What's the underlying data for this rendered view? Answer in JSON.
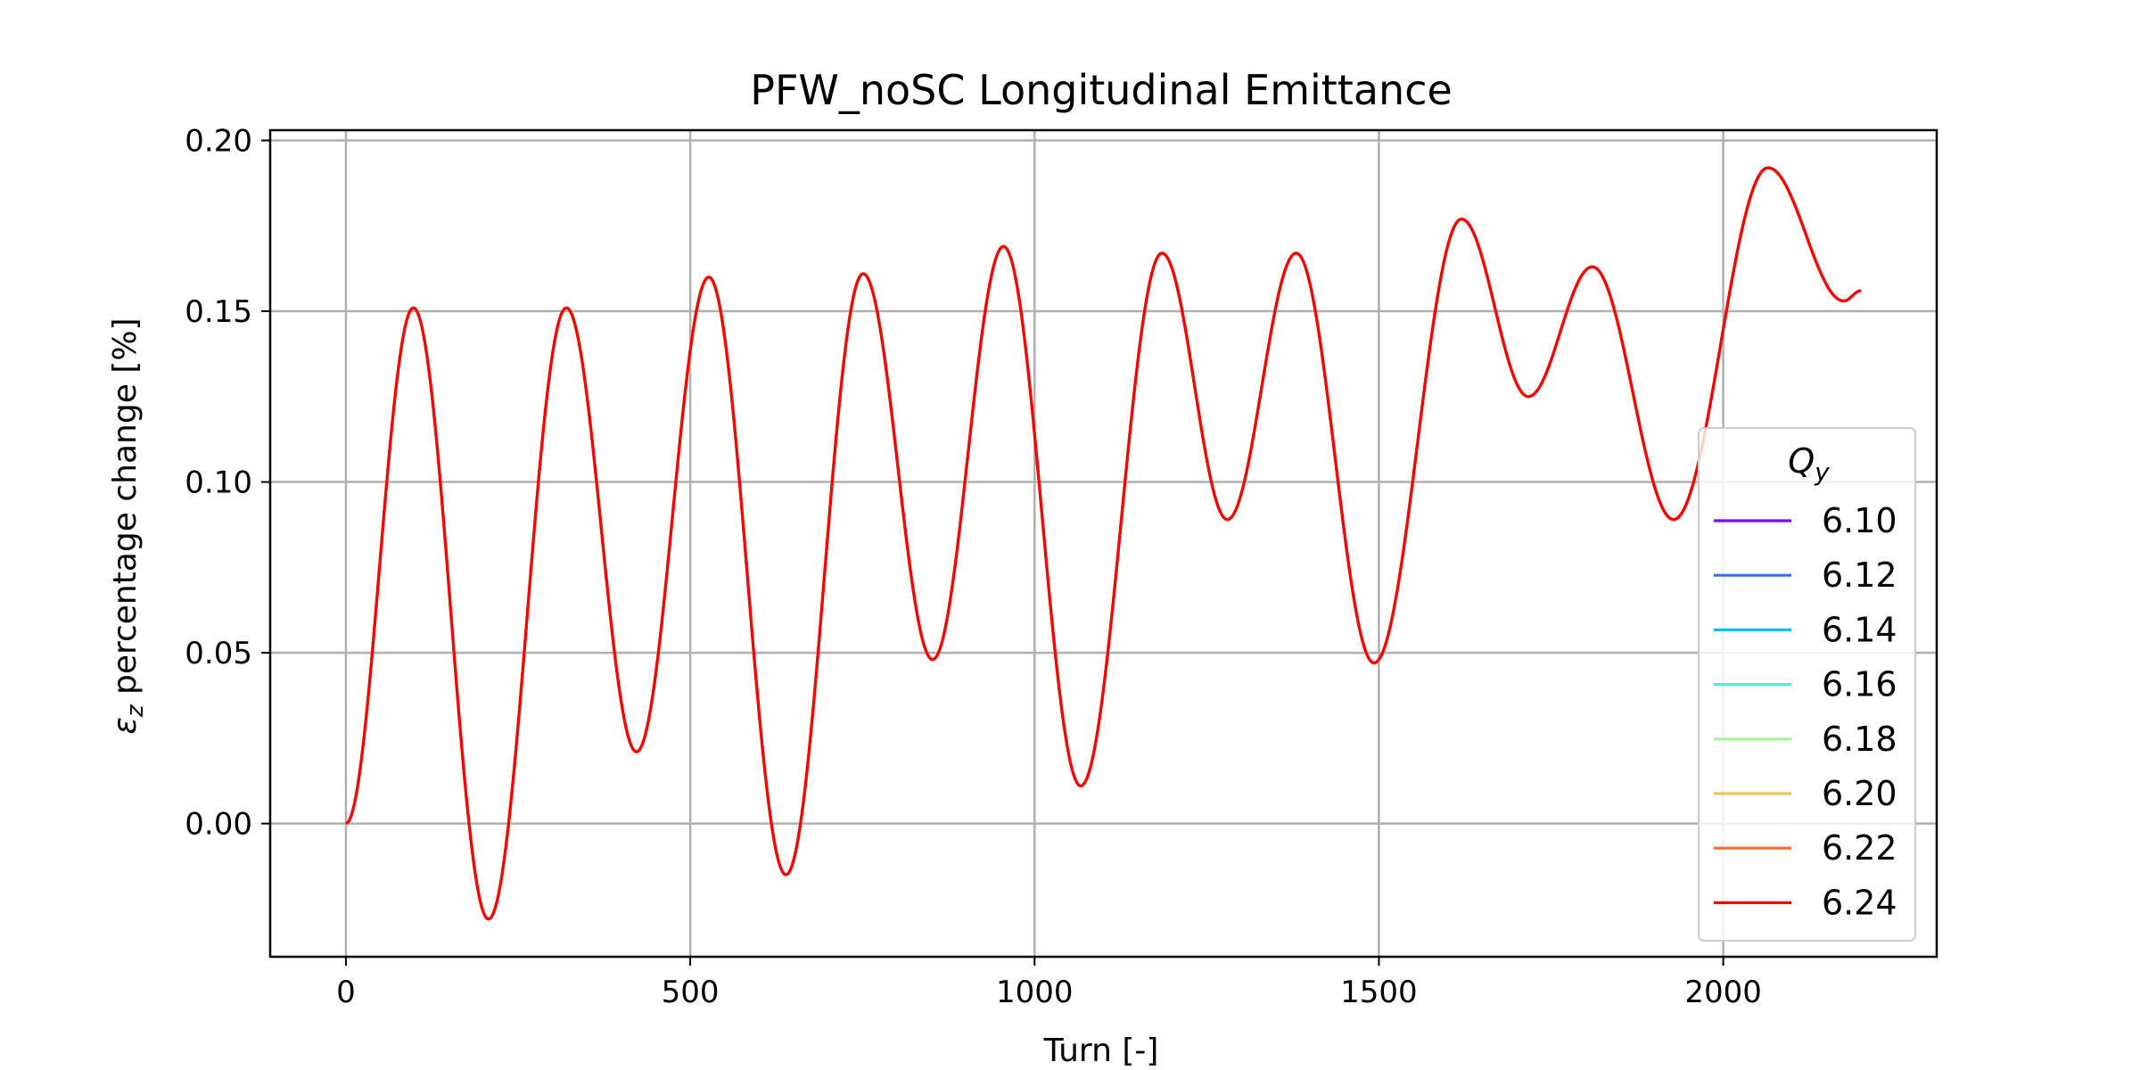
{
  "chart_data": {
    "type": "line",
    "title": "PFW_noSC Longitudinal Emittance",
    "xlabel": "Turn [-]",
    "ylabel_symbol": "ε",
    "ylabel_sub": "z",
    "ylabel_rest": " percentage change [%]",
    "xlim": [
      -110,
      2310
    ],
    "ylim": [
      -0.039,
      0.203
    ],
    "xticks": [
      0,
      500,
      1000,
      1500,
      2000
    ],
    "yticks": [
      0.0,
      0.05,
      0.1,
      0.15,
      0.2
    ],
    "xtick_labels": [
      "0",
      "500",
      "1000",
      "1500",
      "2000"
    ],
    "ytick_labels": [
      "0.00",
      "0.05",
      "0.10",
      "0.15",
      "0.20"
    ],
    "grid": true,
    "legend_title_symbol": "Q",
    "legend_title_sub": "y",
    "legend_placement": "lower-right",
    "extrema": [
      [
        0,
        0.0
      ],
      [
        98,
        0.151
      ],
      [
        207,
        -0.028
      ],
      [
        320,
        0.151
      ],
      [
        422,
        0.021
      ],
      [
        527,
        0.16
      ],
      [
        639,
        -0.015
      ],
      [
        751,
        0.161
      ],
      [
        852,
        0.048
      ],
      [
        955,
        0.169
      ],
      [
        1067,
        0.011
      ],
      [
        1185,
        0.167
      ],
      [
        1280,
        0.089
      ],
      [
        1380,
        0.167
      ],
      [
        1493,
        0.047
      ],
      [
        1620,
        0.177
      ],
      [
        1717,
        0.125
      ],
      [
        1810,
        0.163
      ],
      [
        1928,
        0.089
      ],
      [
        2065,
        0.192
      ],
      [
        2175,
        0.153
      ],
      [
        2200,
        0.156
      ]
    ],
    "series": [
      {
        "name": "6.10",
        "color": "#8000ff"
      },
      {
        "name": "6.12",
        "color": "#3b6ef0"
      },
      {
        "name": "6.14",
        "color": "#0bc0e6"
      },
      {
        "name": "6.16",
        "color": "#48f5c6"
      },
      {
        "name": "6.18",
        "color": "#a4f59a"
      },
      {
        "name": "6.20",
        "color": "#e8c45e"
      },
      {
        "name": "6.22",
        "color": "#ff6a36"
      },
      {
        "name": "6.24",
        "color": "#ff0000"
      }
    ],
    "plotted_series_note": "All series overlap; the top-drawn visible curve is 6.24"
  }
}
